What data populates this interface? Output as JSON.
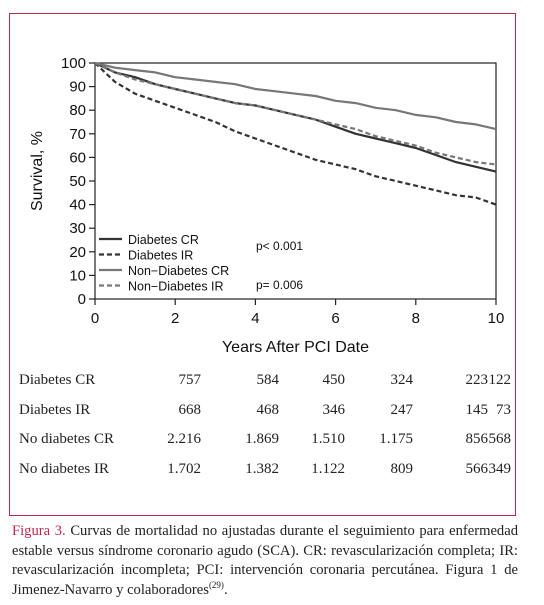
{
  "chart_data": {
    "type": "line",
    "xlabel": "Years After PCI Date",
    "ylabel": "Survival, %",
    "xlim": [
      0,
      10
    ],
    "ylim": [
      0,
      100
    ],
    "xticks": [
      0,
      2,
      4,
      6,
      8,
      10
    ],
    "yticks": [
      0,
      10,
      20,
      30,
      40,
      50,
      60,
      70,
      80,
      90,
      100
    ],
    "legend_position": "bottom-left",
    "legend": [
      {
        "label": "Diabetes CR",
        "style": "solid",
        "color": "#333333"
      },
      {
        "label": "Diabetes IR",
        "style": "dashed",
        "color": "#333333"
      },
      {
        "label": "Non−Diabetes CR",
        "style": "solid",
        "color": "#777777"
      },
      {
        "label": "Non−Diabetes IR",
        "style": "dashed",
        "color": "#777777"
      }
    ],
    "annotations": [
      {
        "text": "p< 0.001"
      },
      {
        "text": "p= 0.006"
      }
    ],
    "series": [
      {
        "name": "Diabetes CR",
        "style": "solid",
        "color": "#333333",
        "x": [
          0,
          0.5,
          1,
          1.5,
          2,
          2.5,
          3,
          3.5,
          4,
          4.5,
          5,
          5.5,
          6,
          6.5,
          7,
          7.5,
          8,
          8.5,
          9,
          9.5,
          10
        ],
        "y": [
          100,
          96,
          94,
          91,
          89,
          87,
          85,
          83,
          82,
          80,
          78,
          76,
          73,
          70,
          68,
          66,
          64,
          61,
          58,
          56,
          54
        ]
      },
      {
        "name": "Diabetes IR",
        "style": "dashed",
        "color": "#333333",
        "x": [
          0,
          0.5,
          1,
          1.5,
          2,
          2.5,
          3,
          3.5,
          4,
          4.5,
          5,
          5.5,
          6,
          6.5,
          7,
          7.5,
          8,
          8.5,
          9,
          9.5,
          10
        ],
        "y": [
          100,
          92,
          87,
          84,
          81,
          78,
          75,
          71,
          68,
          65,
          62,
          59,
          57,
          55,
          52,
          50,
          48,
          46,
          44,
          43,
          40
        ]
      },
      {
        "name": "Non−Diabetes CR",
        "style": "solid",
        "color": "#777777",
        "x": [
          0,
          0.5,
          1,
          1.5,
          2,
          2.5,
          3,
          3.5,
          4,
          4.5,
          5,
          5.5,
          6,
          6.5,
          7,
          7.5,
          8,
          8.5,
          9,
          9.5,
          10
        ],
        "y": [
          100,
          98,
          97,
          96,
          94,
          93,
          92,
          91,
          89,
          88,
          87,
          86,
          84,
          83,
          81,
          80,
          78,
          77,
          75,
          74,
          72
        ]
      },
      {
        "name": "Non−Diabetes IR",
        "style": "dashed",
        "color": "#777777",
        "x": [
          0,
          0.5,
          1,
          1.5,
          2,
          2.5,
          3,
          3.5,
          4,
          4.5,
          5,
          5.5,
          6,
          6.5,
          7,
          7.5,
          8,
          8.5,
          9,
          9.5,
          10
        ],
        "y": [
          100,
          96,
          93,
          91,
          89,
          87,
          85,
          83,
          82,
          80,
          78,
          76,
          74,
          72,
          69,
          67,
          65,
          62,
          60,
          58,
          57
        ]
      }
    ]
  },
  "risk_table": {
    "rows": [
      {
        "label": "Diabetes CR",
        "values": [
          "757",
          "584",
          "450",
          "324",
          "223",
          "122"
        ]
      },
      {
        "label": "Diabetes IR",
        "values": [
          "668",
          "468",
          "346",
          "247",
          "145",
          "73"
        ]
      },
      {
        "label": "No diabetes CR",
        "values": [
          "2.216",
          "1.869",
          "1.510",
          "1.175",
          "856",
          "568"
        ]
      },
      {
        "label": "No diabetes IR",
        "values": [
          "1.702",
          "1.382",
          "1.122",
          "809",
          "566",
          "349"
        ]
      }
    ]
  },
  "caption": {
    "label": "Figura 3.",
    "text": " Curvas de mortalidad no ajustadas durante el seguimiento para enfermedad estable versus síndrome coronario agudo (SCA). CR: revascularización completa; IR: revascularización incompleta; PCI: intervención coronaria percutánea. Figura 1 de Jimenez-Navarro y colaboradores",
    "ref": "(29)",
    "end": "."
  },
  "colors": {
    "border": "#c0274b",
    "caption_label": "#c0274b"
  }
}
